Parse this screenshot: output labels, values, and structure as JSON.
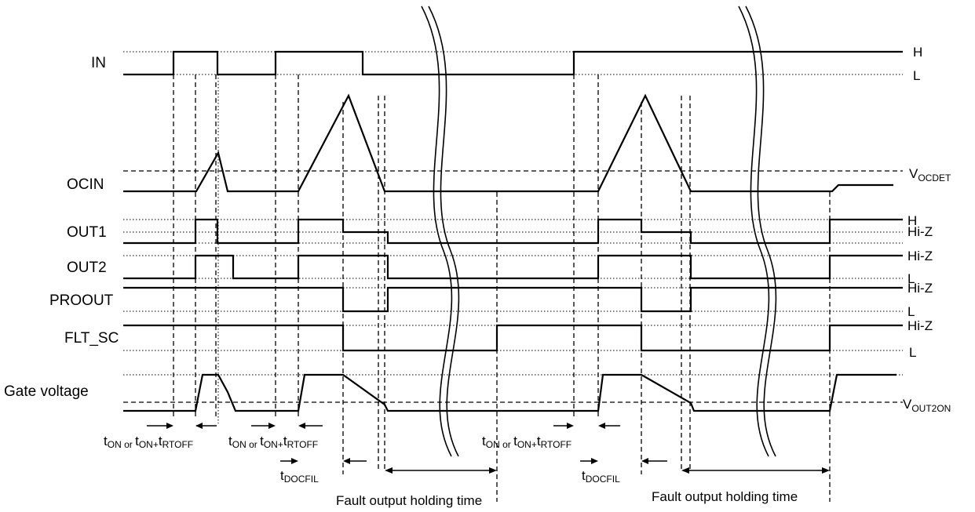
{
  "signals": {
    "in": "IN",
    "ocin": "OCIN",
    "out1": "OUT1",
    "out2": "OUT2",
    "proout": "PROOUT",
    "flt_sc": "FLT_SC",
    "gate": "Gate voltage"
  },
  "levels": {
    "h": "H",
    "l": "L",
    "hiz": "Hi-Z",
    "v_ocdet_main": "V",
    "v_ocdet_sub": "OCDET",
    "v_out2on_main": "V",
    "v_out2on_sub": "OUT2ON"
  },
  "annotations": {
    "t": "t",
    "on": "ON",
    "or": " or ",
    "on_plus": "ON+",
    "rtoff": "RTOFF",
    "docfil": "DOCFIL",
    "fault_holding": "Fault output holding time"
  }
}
